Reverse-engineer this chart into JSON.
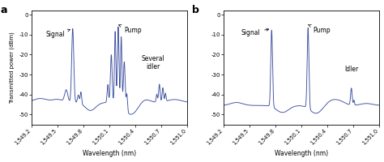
{
  "panel_a_label": "a",
  "panel_b_label": "b",
  "xlabel": "Wavelength (nm)",
  "ylabel": "Transmitted power (dBm)",
  "xlim": [
    1549.2,
    1551.0
  ],
  "ylim": [
    -55,
    2
  ],
  "xticks": [
    1549.2,
    1549.5,
    1549.8,
    1550.1,
    1550.4,
    1550.7,
    1551.0
  ],
  "xtick_labels": [
    "1,549.2",
    "1,549.5",
    "1,549.8",
    "1,550.1",
    "1,550.4",
    "1,550.7",
    "1,551.0"
  ],
  "yticks": [
    0,
    -10,
    -20,
    -30,
    -40,
    -50
  ],
  "line_color": "#3d4fa0",
  "background_color": "#ffffff",
  "figsize": [
    4.74,
    2.0
  ],
  "dpi": 100
}
